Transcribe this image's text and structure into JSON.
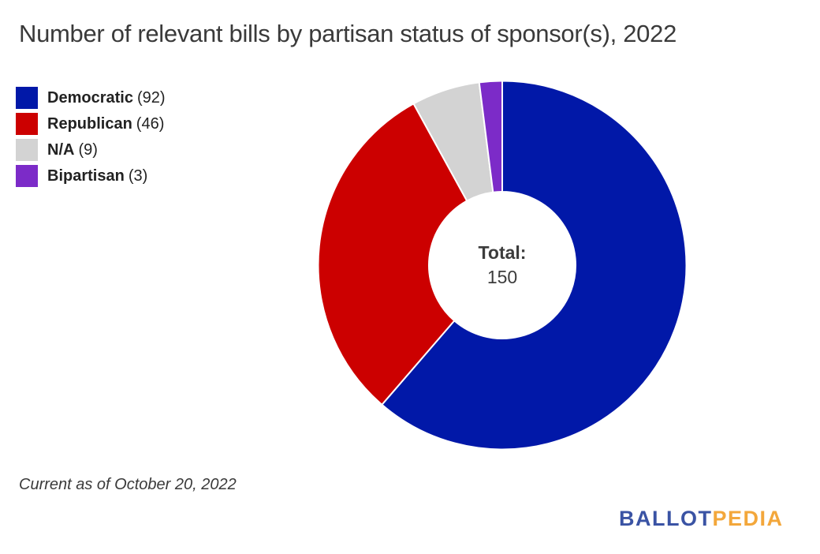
{
  "title": "Number of relevant bills by partisan status of sponsor(s), 2022",
  "center": {
    "label": "Total:",
    "value": "150"
  },
  "footnote": "Current as of October 20, 2022",
  "logo": {
    "part1": "BALLOT",
    "part2": "PEDIA",
    "part1_color": "#3A53A4",
    "part2_color": "#F3A73B"
  },
  "chart_data": {
    "type": "pie",
    "donut": true,
    "title": "Number of relevant bills by partisan status of sponsor(s), 2022",
    "total": 150,
    "center_label": "Total: 150",
    "legend_position": "top-left",
    "direction": "clockwise",
    "start_at": "12-oclock",
    "categories": [
      "Democratic",
      "Republican",
      "N/A",
      "Bipartisan"
    ],
    "values": [
      92,
      46,
      9,
      3
    ],
    "segments": [
      {
        "label": "Democratic",
        "value": 92,
        "count_label": "(92)",
        "color": "#0118A8"
      },
      {
        "label": "Republican",
        "value": 46,
        "count_label": "(46)",
        "color": "#CC0000"
      },
      {
        "label": "N/A",
        "value": 9,
        "count_label": "(9)",
        "color": "#D3D3D3"
      },
      {
        "label": "Bipartisan",
        "value": 3,
        "count_label": "(3)",
        "color": "#7C2BC8"
      }
    ]
  }
}
